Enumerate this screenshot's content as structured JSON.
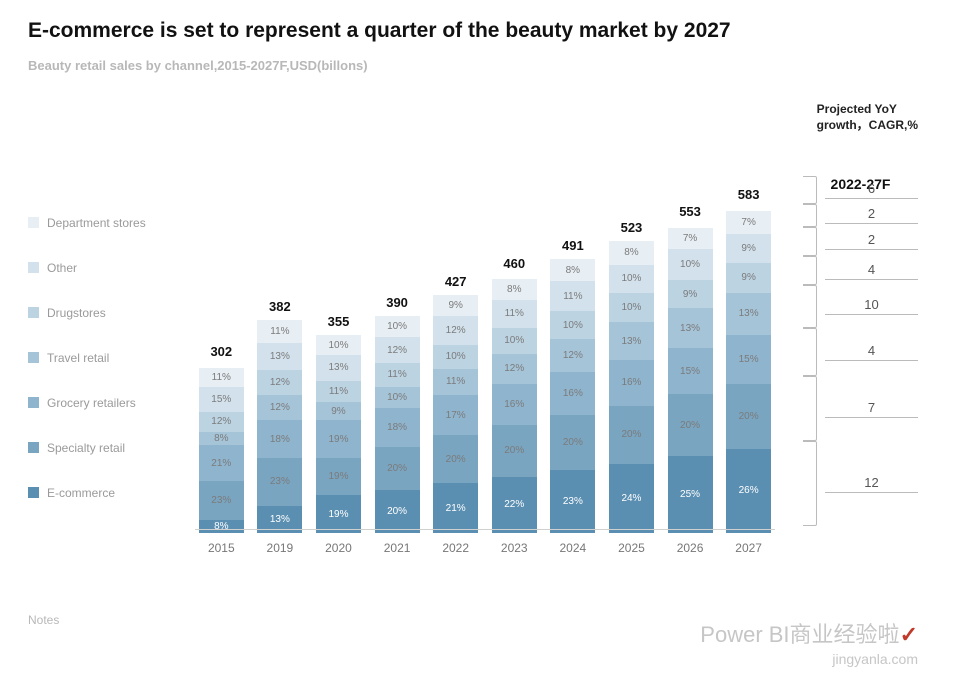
{
  "title": "E-commerce is set to represent a quarter of the beauty market by 2027",
  "subtitle": "Beauty retail sales by channel,2015-2027F,USD(billons)",
  "projected_label_line1": "Projected YoY",
  "projected_label_line2": "growth，CAGR,%",
  "growth_header": "2022-27F",
  "notes": "Notes",
  "watermark1_prefix": "Power BI商业",
  "watermark1_suffix": "经验啦",
  "watermark2": "jingyanla.com",
  "chart": {
    "type": "stacked-bar",
    "bar_height_scale": 0.55,
    "grid_color": "#d0d0d0",
    "max_total": 583,
    "segment_label_colors": {
      "default": "#7b7b7b",
      "bottom": "#ffffff"
    },
    "channels": [
      {
        "key": "ecommerce",
        "label": "E-commerce",
        "color": "#5b8fb1"
      },
      {
        "key": "specialty",
        "label": "Specialty retail",
        "color": "#7aa5c1"
      },
      {
        "key": "grocery",
        "label": "Grocery retailers",
        "color": "#8fb4cd"
      },
      {
        "key": "travel",
        "label": "Travel retail",
        "color": "#a6c4d8"
      },
      {
        "key": "drugstores",
        "label": "Drugstores",
        "color": "#bcd3e2"
      },
      {
        "key": "other",
        "label": "Other",
        "color": "#d2e1eb"
      },
      {
        "key": "department",
        "label": "Department stores",
        "color": "#e7eef4"
      }
    ],
    "years": [
      {
        "year": "2015",
        "total": 302,
        "shares": {
          "ecommerce": 8,
          "specialty": 23,
          "grocery": 21,
          "travel": 8,
          "drugstores": 12,
          "other": 15,
          "department": 11
        }
      },
      {
        "year": "2019",
        "total": 382,
        "shares": {
          "ecommerce": 13,
          "specialty": 23,
          "grocery": 18,
          "travel": 12,
          "drugstores": 12,
          "other": 13,
          "department": 11
        }
      },
      {
        "year": "2020",
        "total": 355,
        "shares": {
          "ecommerce": 19,
          "specialty": 19,
          "grocery": 19,
          "travel": 9,
          "drugstores": 11,
          "other": 13,
          "department": 10
        }
      },
      {
        "year": "2021",
        "total": 390,
        "shares": {
          "ecommerce": 20,
          "specialty": 20,
          "grocery": 18,
          "travel": 10,
          "drugstores": 11,
          "other": 12,
          "department": 10
        }
      },
      {
        "year": "2022",
        "total": 427,
        "shares": {
          "ecommerce": 21,
          "specialty": 20,
          "grocery": 17,
          "travel": 11,
          "drugstores": 10,
          "other": 12,
          "department": 9
        }
      },
      {
        "year": "2023",
        "total": 460,
        "shares": {
          "ecommerce": 22,
          "specialty": 20,
          "grocery": 16,
          "travel": 12,
          "drugstores": 10,
          "other": 11,
          "department": 8
        }
      },
      {
        "year": "2024",
        "total": 491,
        "shares": {
          "ecommerce": 23,
          "specialty": 20,
          "grocery": 16,
          "travel": 12,
          "drugstores": 10,
          "other": 11,
          "department": 8
        }
      },
      {
        "year": "2025",
        "total": 523,
        "shares": {
          "ecommerce": 24,
          "specialty": 20,
          "grocery": 16,
          "travel": 13,
          "drugstores": 10,
          "other": 10,
          "department": 8
        }
      },
      {
        "year": "2026",
        "total": 553,
        "shares": {
          "ecommerce": 25,
          "specialty": 20,
          "grocery": 15,
          "travel": 13,
          "drugstores": 9,
          "other": 10,
          "department": 7
        }
      },
      {
        "year": "2027",
        "total": 583,
        "shares": {
          "ecommerce": 26,
          "specialty": 20,
          "grocery": 15,
          "travel": 13,
          "drugstores": 9,
          "other": 9,
          "department": 7
        }
      }
    ],
    "growth": [
      {
        "key": "ecommerce",
        "value": 12
      },
      {
        "key": "specialty",
        "value": 7
      },
      {
        "key": "grocery",
        "value": 4
      },
      {
        "key": "travel",
        "value": 10
      },
      {
        "key": "drugstores",
        "value": 4
      },
      {
        "key": "other",
        "value": 2
      },
      {
        "key": "department",
        "value": 2
      },
      {
        "key": "total_top",
        "value": 6
      }
    ]
  }
}
